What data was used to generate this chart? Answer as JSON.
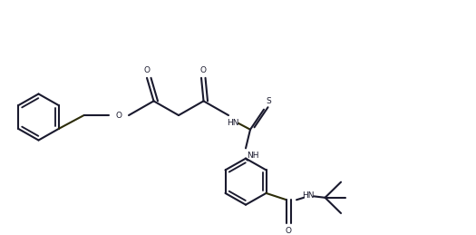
{
  "bg_color": "#ffffff",
  "line_color": "#1a1a2e",
  "bond_color": "#2d2d0a",
  "line_width": 1.5,
  "figsize": [
    5.25,
    2.59
  ],
  "dpi": 100,
  "xlim": [
    0,
    10.5
  ],
  "ylim": [
    0,
    5.18
  ]
}
